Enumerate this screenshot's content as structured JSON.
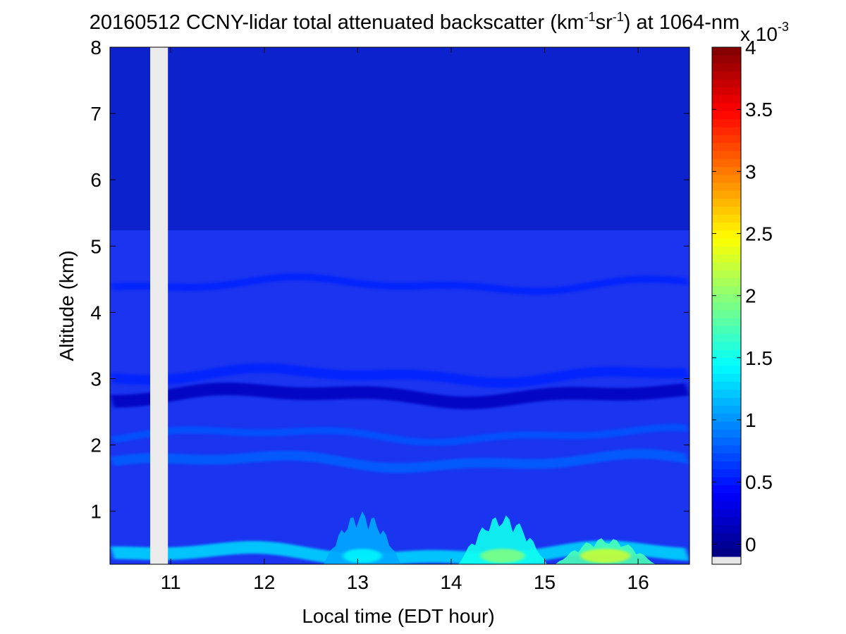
{
  "chart_data": {
    "type": "heatmap",
    "title_parts": {
      "prefix": "20160512 CCNY-lidar total attenuated backscatter (km",
      "sup1": "-1",
      "mid": "sr",
      "sup2": "-1",
      "suffix": ") at 1064-nm"
    },
    "xlabel": "Local time (EDT hour)",
    "ylabel": "Altitude (km)",
    "xlim": [
      10.35,
      16.55
    ],
    "ylim": [
      0.2,
      8
    ],
    "xticks": [
      "11",
      "12",
      "13",
      "14",
      "15",
      "16"
    ],
    "yticks": [
      "1",
      "2",
      "3",
      "4",
      "5",
      "6",
      "7",
      "8"
    ],
    "missing_data_interval": [
      10.78,
      10.97
    ],
    "missing_color": "#ebebeb",
    "colormap": "jet",
    "colorbar": {
      "range": [
        -0.1,
        4
      ],
      "ticks": [
        "0",
        "0.5",
        "1",
        "1.5",
        "2",
        "2.5",
        "3",
        "3.5",
        "4"
      ],
      "exponent_base": "x 10",
      "exponent_power": "-3",
      "below_range_color": "#e6e6e6"
    },
    "layers": [
      {
        "altitude_km": 4.42,
        "value": 0.55
      },
      {
        "altitude_km": 3.05,
        "value": 0.55
      },
      {
        "altitude_km": 2.75,
        "value": 0.15
      },
      {
        "altitude_km": 2.15,
        "value": 0.75
      },
      {
        "altitude_km": 1.75,
        "value": 0.8
      },
      {
        "altitude_km": 0.35,
        "value": 1.3
      }
    ],
    "aerosol_bursts": [
      {
        "time": 13.05,
        "top_km": 1.0,
        "peak_value": 1.45
      },
      {
        "time": 14.55,
        "top_km": 0.95,
        "peak_value": 2.0
      },
      {
        "time": 15.65,
        "top_km": 0.6,
        "peak_value": 2.3
      }
    ]
  }
}
